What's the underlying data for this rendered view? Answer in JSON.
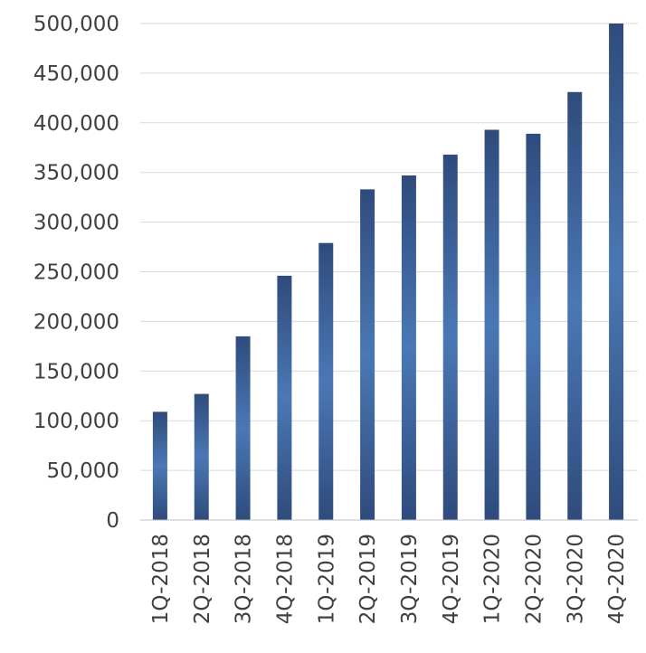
{
  "chart_data": {
    "type": "bar",
    "title": "",
    "xlabel": "",
    "ylabel": "",
    "categories": [
      "1Q-2018",
      "2Q-2018",
      "3Q-2018",
      "4Q-2018",
      "1Q-2019",
      "2Q-2019",
      "3Q-2019",
      "4Q-2019",
      "1Q-2020",
      "2Q-2020",
      "3Q-2020",
      "4Q-2020"
    ],
    "values": [
      109000,
      127000,
      185000,
      246000,
      279000,
      333000,
      347000,
      368000,
      393000,
      389000,
      431000,
      500000
    ],
    "ylim": [
      0,
      500000
    ],
    "yticks": [
      0,
      50000,
      100000,
      150000,
      200000,
      250000,
      300000,
      350000,
      400000,
      450000,
      500000
    ],
    "ytick_labels": [
      "0",
      "50,000",
      "100,000",
      "150,000",
      "200,000",
      "250,000",
      "300,000",
      "350,000",
      "400,000",
      "450,000",
      "500,000"
    ],
    "grid": true,
    "legend": "none",
    "colors": {
      "bar_edge": "#2f4b7c",
      "bar_center": "#4a78b5",
      "grid": "#d9d9d9",
      "text": "#404040"
    }
  }
}
